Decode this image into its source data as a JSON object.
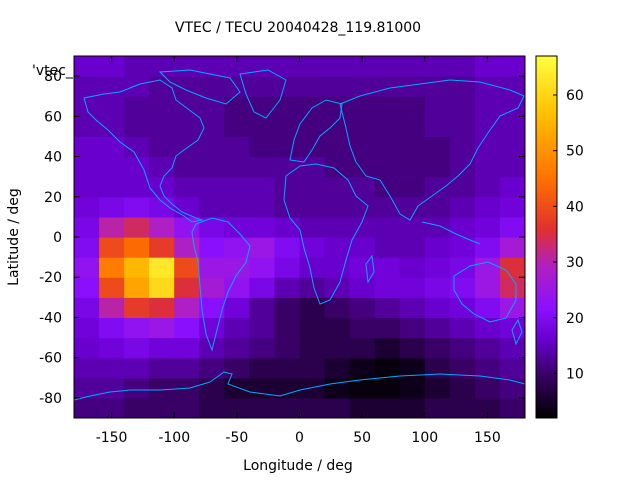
{
  "chart_data": {
    "type": "heatmap",
    "title": "VTEC / TECU 20040428_119.81000",
    "xlabel": "Longitude / deg",
    "ylabel": "Latitude / deg",
    "key_label": "'vtec_",
    "xlim": [
      -180,
      180
    ],
    "ylim": [
      -90,
      90
    ],
    "x_ticks": [
      -150,
      -100,
      -50,
      0,
      50,
      100,
      150
    ],
    "y_ticks": [
      -80,
      -60,
      -40,
      -20,
      0,
      20,
      40,
      60,
      80
    ],
    "colorbar": {
      "range": [
        2,
        67
      ],
      "ticks": [
        10,
        20,
        30,
        40,
        50,
        60
      ],
      "palette": [
        "#000000",
        "#3a0068",
        "#6a00d0",
        "#8a10ff",
        "#b020c0",
        "#e03030",
        "#ff7000",
        "#ffc000",
        "#ffff40"
      ]
    },
    "overlay": "coastlines",
    "coastline_color": "#00aaff",
    "value_grid": {
      "lat_step_deg": 10,
      "lon_step_deg": 20,
      "lat_start": -90,
      "lon_start": -180,
      "rows": [
        [
          12,
          12,
          10,
          10,
          10,
          8,
          8,
          8,
          8,
          8,
          8,
          6,
          6,
          6,
          8,
          8,
          8,
          10
        ],
        [
          14,
          14,
          12,
          10,
          10,
          8,
          6,
          6,
          6,
          6,
          4,
          3,
          3,
          4,
          6,
          8,
          10,
          12
        ],
        [
          16,
          16,
          16,
          14,
          14,
          12,
          10,
          8,
          8,
          8,
          6,
          4,
          3,
          4,
          8,
          10,
          12,
          14
        ],
        [
          18,
          20,
          22,
          20,
          20,
          16,
          14,
          12,
          10,
          8,
          8,
          8,
          6,
          8,
          10,
          12,
          14,
          16
        ],
        [
          20,
          24,
          28,
          30,
          26,
          20,
          16,
          14,
          10,
          8,
          8,
          10,
          10,
          12,
          14,
          16,
          18,
          20
        ],
        [
          22,
          36,
          44,
          42,
          34,
          26,
          20,
          14,
          10,
          8,
          10,
          12,
          14,
          16,
          18,
          20,
          24,
          30
        ],
        [
          26,
          46,
          56,
          62,
          42,
          32,
          28,
          22,
          16,
          14,
          16,
          18,
          20,
          20,
          22,
          24,
          30,
          40
        ],
        [
          28,
          52,
          58,
          64,
          46,
          30,
          30,
          28,
          22,
          18,
          18,
          20,
          20,
          18,
          20,
          22,
          30,
          42
        ],
        [
          24,
          46,
          50,
          44,
          34,
          26,
          28,
          30,
          24,
          20,
          18,
          18,
          16,
          16,
          18,
          20,
          24,
          32
        ],
        [
          22,
          36,
          40,
          34,
          28,
          22,
          20,
          20,
          18,
          16,
          16,
          16,
          16,
          16,
          16,
          18,
          20,
          24
        ],
        [
          20,
          22,
          24,
          22,
          18,
          16,
          16,
          16,
          14,
          14,
          14,
          14,
          14,
          14,
          14,
          16,
          18,
          20
        ],
        [
          18,
          18,
          18,
          18,
          16,
          16,
          16,
          16,
          14,
          14,
          14,
          14,
          12,
          12,
          14,
          14,
          16,
          18
        ],
        [
          18,
          18,
          18,
          16,
          14,
          14,
          14,
          14,
          14,
          14,
          12,
          12,
          12,
          12,
          12,
          14,
          16,
          16
        ],
        [
          18,
          18,
          16,
          14,
          14,
          14,
          14,
          12,
          12,
          12,
          12,
          12,
          12,
          12,
          12,
          14,
          16,
          16
        ],
        [
          16,
          16,
          14,
          14,
          14,
          14,
          12,
          12,
          12,
          12,
          12,
          12,
          12,
          12,
          14,
          14,
          16,
          16
        ],
        [
          16,
          16,
          14,
          14,
          14,
          14,
          12,
          12,
          12,
          12,
          12,
          12,
          12,
          12,
          14,
          14,
          16,
          16
        ],
        [
          16,
          16,
          16,
          14,
          14,
          14,
          14,
          14,
          14,
          14,
          14,
          14,
          14,
          14,
          14,
          14,
          16,
          16
        ],
        [
          18,
          18,
          16,
          16,
          16,
          16,
          16,
          16,
          16,
          16,
          16,
          16,
          16,
          16,
          16,
          16,
          18,
          18
        ]
      ]
    }
  }
}
